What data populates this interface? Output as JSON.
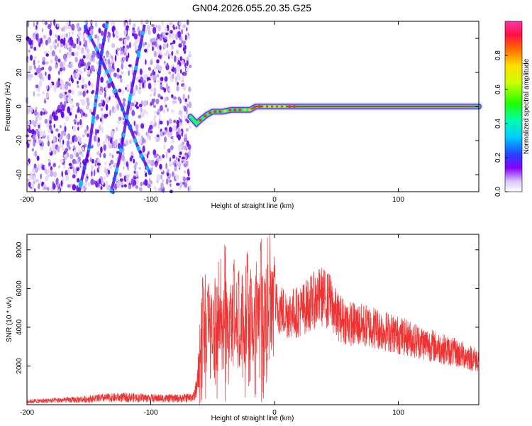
{
  "title": "GN04.2026.055.20.35.G25",
  "chart_data": [
    {
      "type": "heatmap",
      "xlabel": "Height of straight line (km)",
      "ylabel": "Frequency (Hz)",
      "xlim": [
        -200,
        165
      ],
      "ylim": [
        -50,
        50
      ],
      "xticks": [
        -200,
        -100,
        0,
        100
      ],
      "yticks": [
        -40,
        -20,
        0,
        20,
        40
      ],
      "colorbar": {
        "label": "Normalized spectral amplitude",
        "range": [
          0,
          1
        ],
        "ticks": [
          "0.0",
          "0.2",
          "0.4",
          "0.6",
          "0.8"
        ]
      },
      "noise_region_x": [
        -200,
        -68
      ],
      "main_track": [
        [
          -68,
          -6
        ],
        [
          -63,
          -10
        ],
        [
          -60,
          -8
        ],
        [
          -55,
          -5
        ],
        [
          -50,
          -3
        ],
        [
          -42,
          -3
        ],
        [
          -35,
          -2
        ],
        [
          -28,
          -2
        ],
        [
          -20,
          -2
        ],
        [
          -15,
          0
        ],
        [
          -5,
          0
        ],
        [
          5,
          0
        ],
        [
          15,
          0
        ],
        [
          40,
          0
        ],
        [
          100,
          0
        ],
        [
          165,
          0
        ]
      ],
      "noise_tracks": [
        [
          [
            -153,
            47
          ],
          [
            -140,
            28
          ],
          [
            -128,
            8
          ],
          [
            -117,
            -12
          ],
          [
            -108,
            -28
          ],
          [
            -100,
            -40
          ]
        ],
        [
          [
            -135,
            50
          ],
          [
            -140,
            30
          ],
          [
            -145,
            0
          ],
          [
            -150,
            -25
          ],
          [
            -158,
            -50
          ]
        ],
        [
          [
            -105,
            48
          ],
          [
            -110,
            30
          ],
          [
            -118,
            0
          ],
          [
            -125,
            -30
          ],
          [
            -132,
            -50
          ]
        ]
      ]
    },
    {
      "type": "line",
      "xlabel": "Height of straight line (km)",
      "ylabel": "SNR (10 * v/v)",
      "xlim": [
        -200,
        165
      ],
      "ylim": [
        0,
        8800
      ],
      "xticks": [
        -200,
        -100,
        0,
        100
      ],
      "yticks": [
        2000,
        4000,
        6000,
        8000
      ],
      "series": [
        {
          "name": "SNR",
          "color": "#ee3333",
          "envelope_x": [
            -200,
            -180,
            -160,
            -140,
            -120,
            -100,
            -80,
            -70,
            -65,
            -62,
            -58,
            -55,
            -50,
            -45,
            -40,
            -35,
            -30,
            -25,
            -20,
            -15,
            -10,
            -5,
            0,
            10,
            20,
            30,
            38,
            45,
            50,
            60,
            80,
            100,
            120,
            140,
            150,
            165
          ],
          "envelope_y": [
            200,
            250,
            300,
            400,
            450,
            400,
            380,
            420,
            500,
            1500,
            3300,
            3600,
            3800,
            3800,
            3900,
            4000,
            4100,
            4200,
            4300,
            4400,
            4500,
            4700,
            5100,
            4700,
            4800,
            5300,
            5600,
            5300,
            4600,
            4200,
            4000,
            3600,
            3200,
            2800,
            2600,
            2300
          ],
          "bursts": [
            [
              -58,
              7000
            ],
            [
              -54,
              6200
            ],
            [
              -48,
              6700
            ],
            [
              -44,
              4800
            ],
            [
              -40,
              8300
            ],
            [
              -36,
              6000
            ],
            [
              -33,
              7600
            ],
            [
              -29,
              7200
            ],
            [
              -26,
              6800
            ],
            [
              -22,
              8000
            ],
            [
              -19,
              7000
            ],
            [
              -15,
              7500
            ],
            [
              -11,
              8800
            ],
            [
              -8,
              6600
            ],
            [
              -4,
              6400
            ],
            [
              0,
              7300
            ],
            [
              37,
              6000
            ],
            [
              44,
              6200
            ]
          ]
        }
      ]
    }
  ]
}
